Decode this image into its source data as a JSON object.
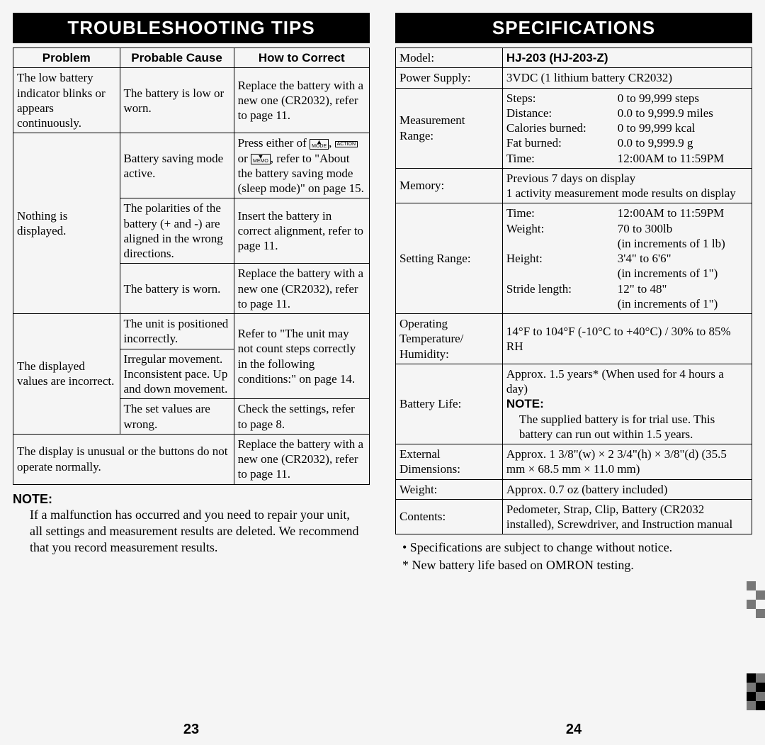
{
  "left": {
    "title": "TROUBLESHOOTING TIPS",
    "headers": {
      "problem": "Problem",
      "cause": "Probable Cause",
      "fix": "How to Correct"
    },
    "rows": {
      "r1": {
        "problem": "The low battery indicator blinks or appears continuously.",
        "cause": "The battery is low or worn.",
        "fix": "Replace the battery with a new one (CR2032), refer to page 11."
      },
      "r2a": {
        "problem": "Nothing is displayed.",
        "cause": "Battery saving mode active.",
        "fix_pre": "Press either of ",
        "fix_post": ", refer to \"About the battery saving mode (sleep mode)\" on page 15.",
        "btn_mode": "MODE",
        "btn_action": "ACTION",
        "btn_memo": "MEMO",
        "or": " or "
      },
      "r2b": {
        "cause": "The polarities of the battery (+ and -) are aligned in the wrong directions.",
        "fix": "Insert the battery in correct alignment, refer to page 11."
      },
      "r2c": {
        "cause": "The battery is worn.",
        "fix": "Replace the battery with a new one (CR2032), refer to page 11."
      },
      "r3a": {
        "problem": "The displayed values are incorrect.",
        "cause": "The unit is positioned incorrectly.",
        "fix": "Refer to \"The unit may not count steps correctly in the following conditions:\" on page 14."
      },
      "r3b": {
        "cause": "Irregular movement. Inconsistent pace. Up and down movement."
      },
      "r3c": {
        "cause": "The set values are wrong.",
        "fix": "Check the settings, refer to page 8."
      },
      "r4": {
        "problem": "The display is unusual or the buttons do not operate normally.",
        "fix": "Replace the battery with a new one (CR2032), refer to page 11."
      }
    },
    "note_heading": "NOTE:",
    "note_body": "If a malfunction has occurred and you need to repair your unit, all settings and measurement results are deleted. We recommend that you record measurement results.",
    "pagenum": "23"
  },
  "right": {
    "title": "SPECIFICATIONS",
    "rows": {
      "model": {
        "label": "Model:",
        "value": "HJ-203 (HJ-203-Z)"
      },
      "power": {
        "label": "Power Supply:",
        "value": "3VDC (1 lithium battery CR2032)"
      },
      "range": {
        "label": "Measurement Range:",
        "items": [
          {
            "k": "Steps:",
            "v": "0 to 99,999 steps"
          },
          {
            "k": "Distance:",
            "v": "0.0 to 9,999.9 miles"
          },
          {
            "k": "Calories burned:",
            "v": "0 to 99,999 kcal"
          },
          {
            "k": "Fat burned:",
            "v": "0.0 to 9,999.9 g"
          },
          {
            "k": "Time:",
            "v": "12:00AM to 11:59PM"
          }
        ]
      },
      "memory": {
        "label": "Memory:",
        "value": "Previous 7 days on display\n1 activity measurement mode results on display"
      },
      "setting": {
        "label": "Setting Range:",
        "items": [
          {
            "k": "Time:",
            "v": "12:00AM to 11:59PM"
          },
          {
            "k": "Weight:",
            "v": "70 to 300lb"
          },
          {
            "k": "",
            "v": "(in increments of 1 lb)"
          },
          {
            "k": "Height:",
            "v": "3'4\" to 6'6\""
          },
          {
            "k": "",
            "v": "(in increments of 1\")"
          },
          {
            "k": "Stride length:",
            "v": "12\" to 48\""
          },
          {
            "k": "",
            "v": "(in increments of 1\")"
          }
        ]
      },
      "temp": {
        "label": "Operating Temperature/ Humidity:",
        "value": "14°F to 104°F (-10°C to +40°C) / 30% to 85% RH"
      },
      "battery": {
        "label": "Battery Life:",
        "line1": "Approx. 1.5 years* (When used for 4 hours a day)",
        "note_label": "NOTE:",
        "note_body": "The supplied battery is for trial use. This battery can run out within 1.5 years."
      },
      "dims": {
        "label": "External Dimensions:",
        "value": "Approx. 1 3/8\"(w) × 2 3/4\"(h) × 3/8\"(d) (35.5 mm × 68.5 mm × 11.0 mm)"
      },
      "weight": {
        "label": "Weight:",
        "value": "Approx. 0.7 oz (battery included)"
      },
      "contents": {
        "label": "Contents:",
        "value": "Pedometer, Strap, Clip, Battery (CR2032 installed), Screwdriver, and Instruction manual"
      }
    },
    "bullets": {
      "b1": "• Specifications are subject to change without notice.",
      "b2": "* New battery life based on OMRON testing."
    },
    "pagenum": "24"
  }
}
